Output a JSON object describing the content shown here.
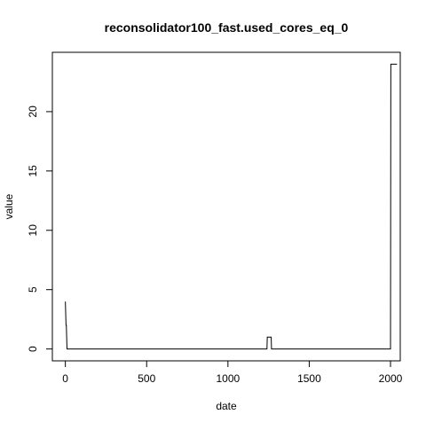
{
  "chart_data": {
    "type": "line",
    "title": "reconsolidator100_fast.used_cores_eq_0",
    "xlabel": "date",
    "ylabel": "value",
    "xlim": [
      -80,
      2060
    ],
    "ylim": [
      -1,
      25
    ],
    "xticks": [
      0,
      500,
      1000,
      1500,
      2000
    ],
    "yticks": [
      0,
      5,
      10,
      15,
      20
    ],
    "grid": false,
    "legend": "none",
    "series_color": "#000000",
    "x": [
      0,
      2,
      4,
      6,
      8,
      10,
      12,
      14,
      1240,
      1242,
      1266,
      1268,
      2000,
      2002,
      2040
    ],
    "values": [
      4,
      3,
      2,
      2,
      1,
      0,
      0,
      0,
      0,
      1,
      1,
      0,
      0,
      24,
      24
    ]
  }
}
